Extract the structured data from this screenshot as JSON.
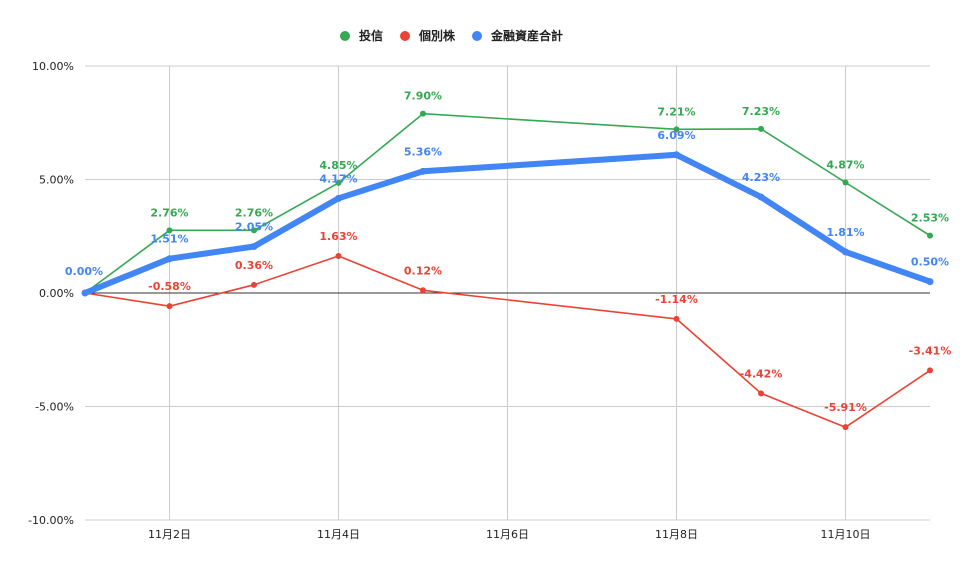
{
  "chart_data": {
    "type": "line",
    "title": "",
    "xlabel": "",
    "ylabel": "",
    "x": [
      1,
      2,
      3,
      4,
      5,
      8,
      9,
      10,
      11
    ],
    "x_ticks": [
      {
        "value": 2,
        "label": "11月2日"
      },
      {
        "value": 4,
        "label": "11月4日"
      },
      {
        "value": 6,
        "label": "11月6日"
      },
      {
        "value": 8,
        "label": "11月8日"
      },
      {
        "value": 10,
        "label": "11月10日"
      }
    ],
    "xlim": [
      1,
      11
    ],
    "ylim": [
      -10,
      10
    ],
    "y_ticks": [
      {
        "value": 10,
        "label": "10.00%"
      },
      {
        "value": 5,
        "label": "5.00%"
      },
      {
        "value": 0,
        "label": "0.00%"
      },
      {
        "value": -5,
        "label": "-5.00%"
      },
      {
        "value": -10,
        "label": "-10.00%"
      }
    ],
    "grid": true,
    "legend_position": "top",
    "series": [
      {
        "name": "投信",
        "color": "#34a853",
        "values": [
          0.0,
          2.76,
          2.76,
          4.85,
          7.9,
          7.21,
          7.23,
          4.87,
          2.53
        ],
        "labels": [
          "",
          "2.76%",
          "2.76%",
          "4.85%",
          "7.90%",
          "7.21%",
          "7.23%",
          "4.87%",
          "2.53%"
        ]
      },
      {
        "name": "個別株",
        "color": "#ea4335",
        "values": [
          0.0,
          -0.58,
          0.36,
          1.63,
          0.12,
          -1.14,
          -4.42,
          -5.91,
          -3.41
        ],
        "labels": [
          "",
          "-0.58%",
          "0.36%",
          "1.63%",
          "0.12%",
          "-1.14%",
          "-4.42%",
          "-5.91%",
          "-3.41%"
        ]
      },
      {
        "name": "金融資産合計",
        "color": "#4285f4",
        "values": [
          0.0,
          1.51,
          2.05,
          4.17,
          5.36,
          6.09,
          4.23,
          1.81,
          0.5
        ],
        "labels": [
          "0.00%",
          "1.51%",
          "2.05%",
          "4.17%",
          "5.36%",
          "6.09%",
          "4.23%",
          "1.81%",
          "0.50%"
        ]
      }
    ]
  }
}
